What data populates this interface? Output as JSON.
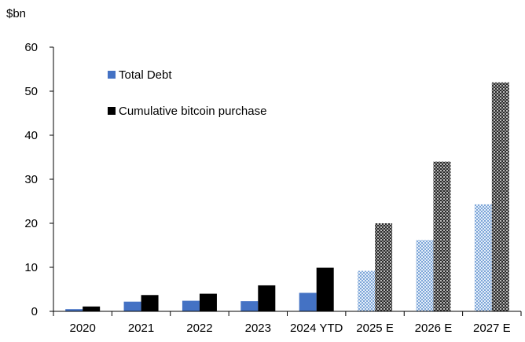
{
  "chart_data": {
    "type": "bar",
    "title": "",
    "ylabel": "$bn",
    "xlabel": "",
    "ylim": [
      0,
      60
    ],
    "yticks": [
      0,
      10,
      20,
      30,
      40,
      50,
      60
    ],
    "categories": [
      "2020",
      "2021",
      "2022",
      "2023",
      "2024 YTD",
      "2025 E",
      "2026 E",
      "2027 E"
    ],
    "estimated_from_index": 5,
    "legend_position": "top-left",
    "grid": false,
    "series": [
      {
        "name": "Total Debt",
        "color": "#4472C4",
        "estimate_pattern_color": "#A8C4E6",
        "values": [
          0.5,
          2.2,
          2.4,
          2.3,
          4.2,
          9.2,
          16.2,
          24.3
        ]
      },
      {
        "name": "Cumulative bitcoin purchase",
        "color": "#000000",
        "estimate_pattern_color": "#777777",
        "values": [
          1.1,
          3.7,
          4.0,
          5.9,
          9.9,
          20.0,
          34.0,
          52.0
        ]
      }
    ]
  }
}
